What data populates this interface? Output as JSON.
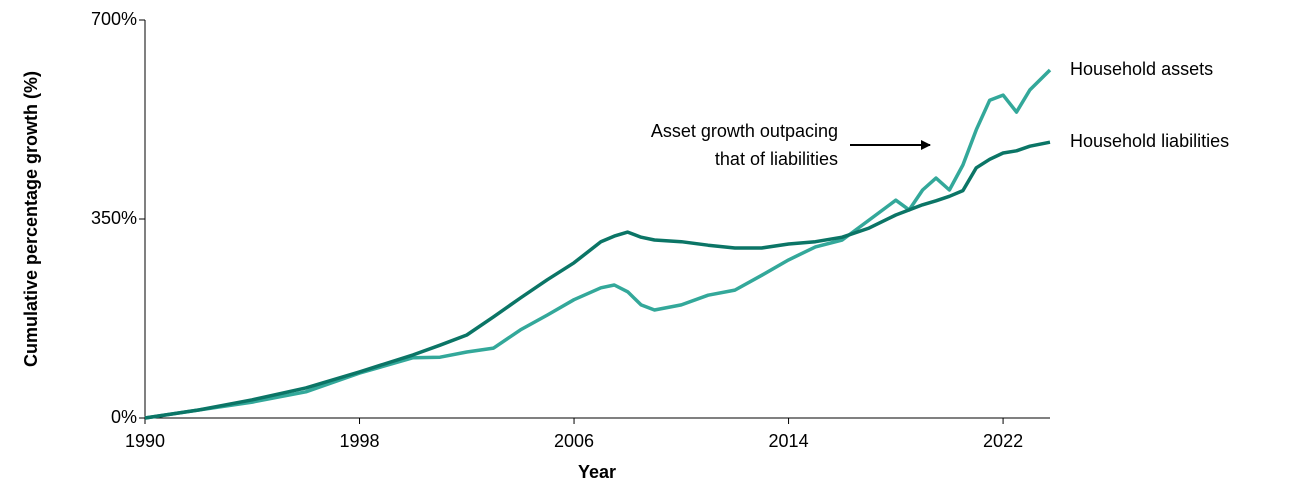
{
  "chart_data": {
    "type": "line",
    "ylabel": "Cumulative percentage growth (%)",
    "xlabel": "Year",
    "annotation": [
      "Asset growth outpacing",
      "that of liabilities"
    ],
    "x": [
      1990,
      1992,
      1994,
      1996,
      1998,
      2000,
      2001,
      2002,
      2003,
      2004,
      2005,
      2006,
      2007,
      2007.5,
      2008,
      2008.5,
      2009,
      2010,
      2011,
      2012,
      2013,
      2014,
      2015,
      2016,
      2017,
      2018,
      2018.5,
      2019,
      2019.5,
      2020,
      2020.5,
      2021,
      2021.5,
      2022,
      2022.5,
      2023,
      2023.75
    ],
    "series": [
      {
        "name": "Household assets",
        "color": "#33a89a",
        "values": [
          0,
          14,
          28,
          46,
          79,
          106,
          107,
          116,
          123,
          155,
          181,
          208,
          229,
          234,
          222,
          199,
          190,
          199,
          216,
          225,
          251,
          278,
          301,
          313,
          348,
          383,
          366,
          401,
          422,
          401,
          445,
          507,
          559,
          568,
          538,
          577,
          612
        ]
      },
      {
        "name": "Household liabilities",
        "color": "#0b7566",
        "values": [
          0,
          14,
          32,
          53,
          81,
          111,
          128,
          146,
          178,
          211,
          243,
          273,
          310,
          320,
          327,
          318,
          313,
          310,
          304,
          299,
          299,
          306,
          310,
          318,
          334,
          357,
          366,
          375,
          382,
          390,
          400,
          440,
          455,
          466,
          470,
          478,
          485
        ]
      }
    ],
    "xlim": [
      1990,
      2023.75
    ],
    "xticks": [
      1990,
      1998,
      2006,
      2014,
      2022
    ],
    "ylim": [
      0,
      700
    ],
    "yticks": [
      {
        "value": 0,
        "label": "0%"
      },
      {
        "value": 350,
        "label": "350%"
      },
      {
        "value": 700,
        "label": "700%"
      }
    ]
  }
}
